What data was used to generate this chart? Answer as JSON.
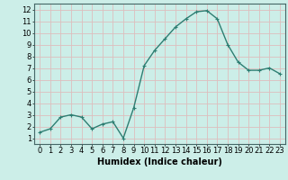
{
  "x": [
    0,
    1,
    2,
    3,
    4,
    5,
    6,
    7,
    8,
    9,
    10,
    11,
    12,
    13,
    14,
    15,
    16,
    17,
    18,
    19,
    20,
    21,
    22,
    23
  ],
  "y": [
    1.5,
    1.8,
    2.8,
    3.0,
    2.8,
    1.8,
    2.2,
    2.4,
    1.0,
    3.6,
    7.2,
    8.5,
    9.5,
    10.5,
    11.2,
    11.8,
    11.9,
    11.2,
    9.0,
    7.5,
    6.8,
    6.8,
    7.0,
    6.5
  ],
  "line_color": "#2d7e72",
  "marker_color": "#2d7e72",
  "bg_color": "#cceee8",
  "grid_color": "#ddbebe",
  "xlabel": "Humidex (Indice chaleur)",
  "xlim": [
    -0.5,
    23.5
  ],
  "ylim": [
    0.5,
    12.5
  ],
  "yticks": [
    1,
    2,
    3,
    4,
    5,
    6,
    7,
    8,
    9,
    10,
    11,
    12
  ],
  "xticks": [
    0,
    1,
    2,
    3,
    4,
    5,
    6,
    7,
    8,
    9,
    10,
    11,
    12,
    13,
    14,
    15,
    16,
    17,
    18,
    19,
    20,
    21,
    22,
    23
  ],
  "xlabel_fontsize": 7,
  "tick_fontsize": 6,
  "line_width": 1.0,
  "marker_size": 2.5
}
